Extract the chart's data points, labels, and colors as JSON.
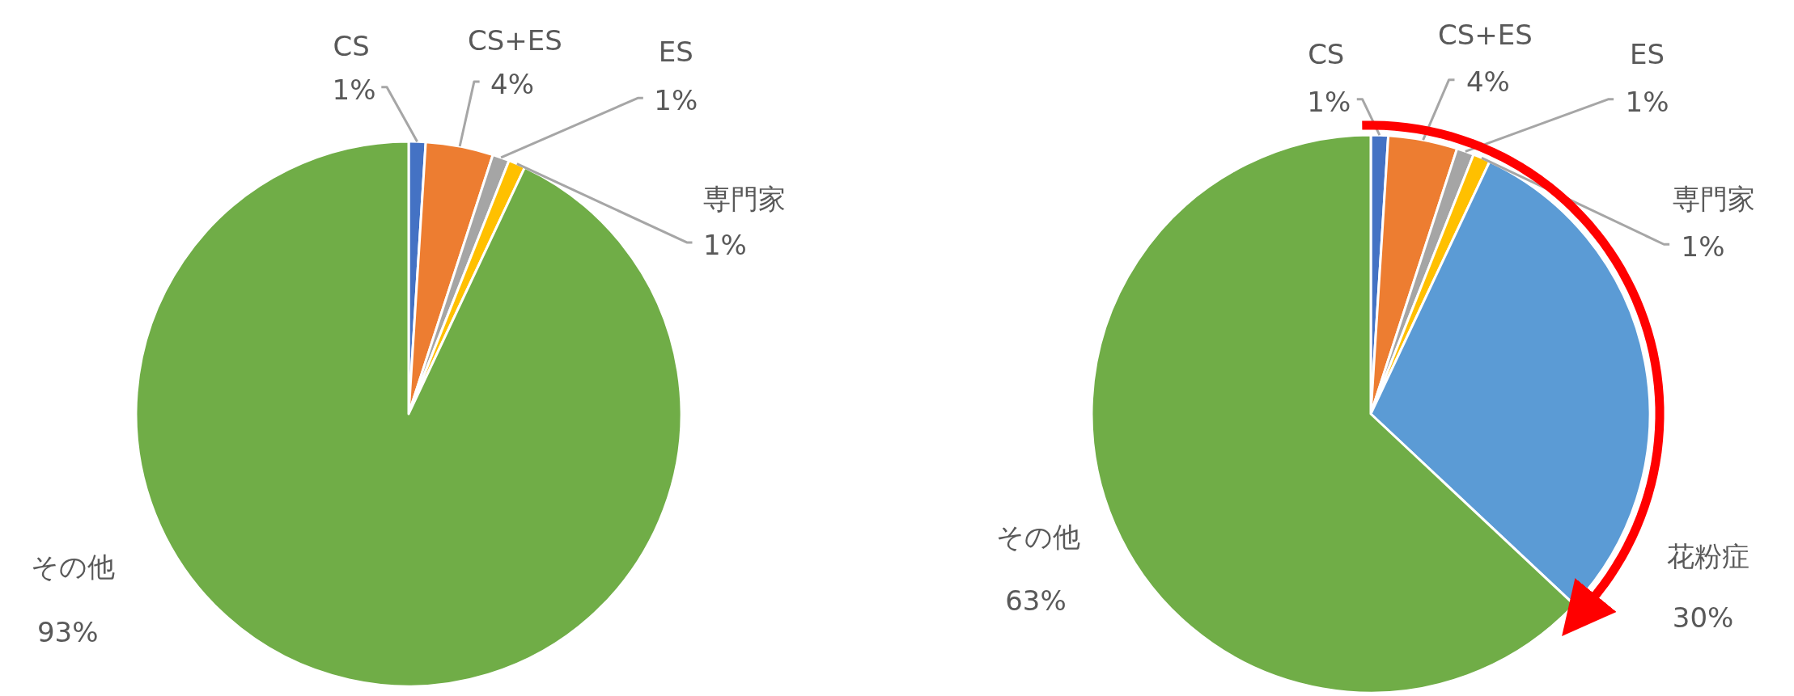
{
  "chart_data": [
    {
      "type": "pie",
      "categories": [
        "CS",
        "CS+ES",
        "ES",
        "専門家",
        "その他"
      ],
      "values": [
        1,
        4,
        1,
        1,
        93
      ],
      "colors": [
        "#4472c4",
        "#ed7d31",
        "#a5a5a5",
        "#ffc000",
        "#70ad47"
      ],
      "data_labels": true,
      "value_labels": [
        "1%",
        "4%",
        "1%",
        "1%",
        "93%"
      ]
    },
    {
      "type": "pie",
      "categories": [
        "CS",
        "CS+ES",
        "ES",
        "専門家",
        "花粉症",
        "その他"
      ],
      "values": [
        1,
        4,
        1,
        1,
        30,
        63
      ],
      "colors": [
        "#4472c4",
        "#ed7d31",
        "#a5a5a5",
        "#ffc000",
        "#5b9bd5",
        "#70ad47"
      ],
      "data_labels": true,
      "value_labels": [
        "1%",
        "4%",
        "1%",
        "1%",
        "30%",
        "63%"
      ]
    }
  ]
}
